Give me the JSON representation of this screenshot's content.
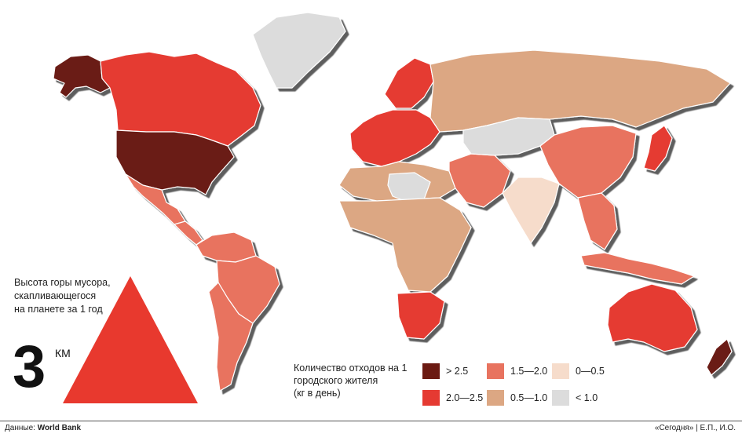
{
  "side_note": {
    "lines": [
      "Высота горы мусора,",
      "скапливающегося",
      "на планете за 1 год"
    ],
    "value": "3",
    "unit": "КМ"
  },
  "legend": {
    "title_lines": [
      "Количество отходов на 1",
      "городского жителя",
      "(кг в день)"
    ],
    "items": [
      {
        "label": "> 2.5",
        "color": "#6b1a12"
      },
      {
        "label": "1.5—2.0",
        "color": "#e8735f"
      },
      {
        "label": "0—0.5",
        "color": "#f6dccb"
      },
      {
        "label": "2.0—2.5",
        "color": "#e53a32"
      },
      {
        "label": "0.5—1.0",
        "color": "#dca783"
      },
      {
        "label": "< 1.0",
        "color": "#dcdcdc"
      }
    ]
  },
  "footer": {
    "source_label": "Данные:",
    "source_value": "World Bank",
    "credit": "«Сегодня» | Е.П., И.О."
  },
  "map": {
    "regions": [
      {
        "name": "alaska",
        "category": "> 2.5"
      },
      {
        "name": "canada",
        "category": "2.0—2.5"
      },
      {
        "name": "greenland",
        "category": "< 1.0"
      },
      {
        "name": "usa",
        "category": "> 2.5"
      },
      {
        "name": "mexico",
        "category": "1.5—2.0"
      },
      {
        "name": "central-america",
        "category": "1.5—2.0"
      },
      {
        "name": "south-america-north",
        "category": "1.5—2.0"
      },
      {
        "name": "brazil",
        "category": "1.5—2.0"
      },
      {
        "name": "south-america-south",
        "category": "1.5—2.0"
      },
      {
        "name": "europe-west",
        "category": "2.0—2.5"
      },
      {
        "name": "scandinavia",
        "category": "2.0—2.5"
      },
      {
        "name": "russia",
        "category": "0.5—1.0"
      },
      {
        "name": "north-africa",
        "category": "0.5—1.0"
      },
      {
        "name": "sahara",
        "category": "< 1.0"
      },
      {
        "name": "central-africa",
        "category": "0.5—1.0"
      },
      {
        "name": "southern-africa",
        "category": "2.0—2.5"
      },
      {
        "name": "middle-east",
        "category": "1.5—2.0"
      },
      {
        "name": "central-asia",
        "category": "< 1.0"
      },
      {
        "name": "china",
        "category": "1.5—2.0"
      },
      {
        "name": "india",
        "category": "0—0.5"
      },
      {
        "name": "southeast-asia",
        "category": "1.5—2.0"
      },
      {
        "name": "japan",
        "category": "2.0—2.5"
      },
      {
        "name": "indonesia",
        "category": "1.5—2.0"
      },
      {
        "name": "australia",
        "category": "2.0—2.5"
      },
      {
        "name": "new-zealand",
        "category": "> 2.5"
      }
    ]
  }
}
